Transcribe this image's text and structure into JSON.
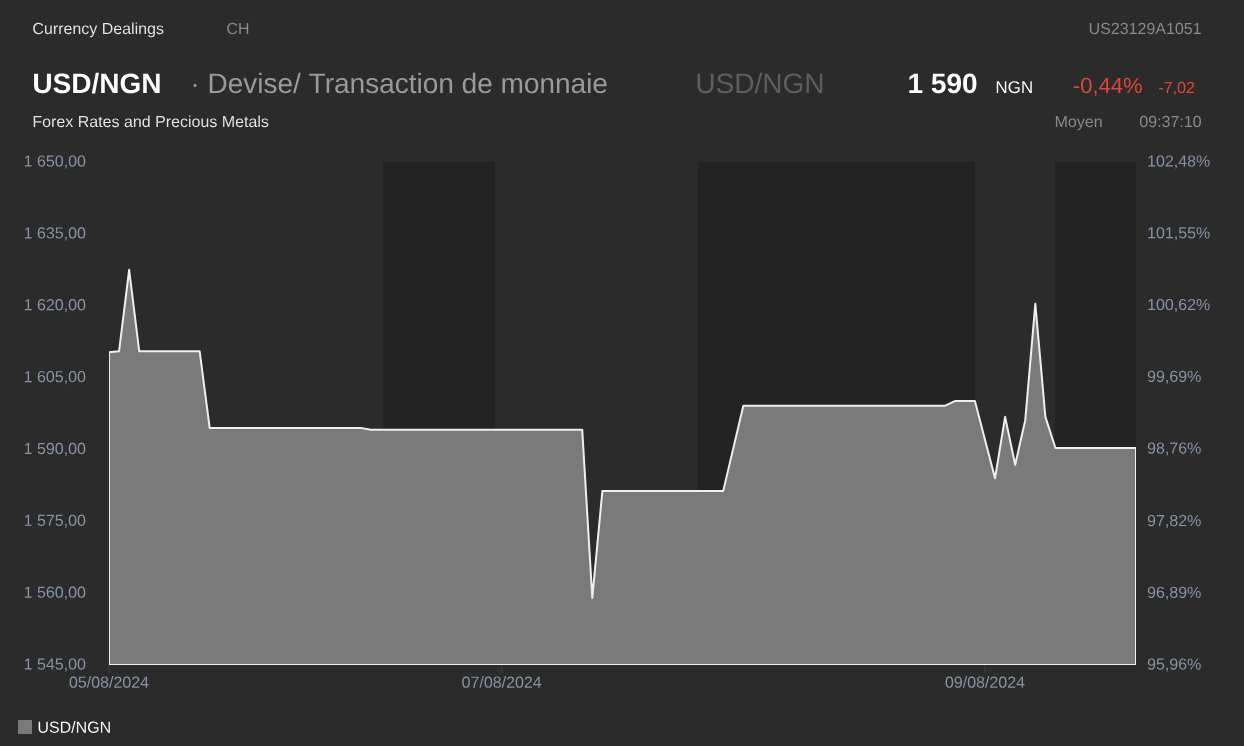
{
  "chart_data": {
    "type": "area",
    "title": "USD/NGN",
    "subtitle": "Forex Rates and Precious Metals",
    "annotations": [
      "Currency Dealings",
      "CH",
      "US23129A1051",
      "· Devise/ Transaction de monnaie",
      "USD/NGN",
      "1 590",
      "NGN",
      "-0,44%",
      "-7,02",
      "Moyen",
      "09:37:10"
    ],
    "categories": [
      "05/08/2024",
      null,
      null,
      null,
      null,
      null,
      null,
      null,
      null,
      null,
      null,
      null,
      null,
      null,
      null,
      null,
      null,
      null,
      null,
      null,
      null,
      null,
      null,
      null,
      null,
      null,
      null,
      null,
      null,
      null,
      null,
      null,
      null,
      null,
      null,
      null,
      null,
      null,
      null,
      "07/08/2024",
      null,
      null,
      null,
      null,
      null,
      null,
      null,
      null,
      null,
      null,
      null,
      null,
      null,
      null,
      null,
      null,
      null,
      null,
      null,
      null,
      null,
      null,
      null,
      null,
      null,
      null,
      null,
      null,
      null,
      null,
      null,
      null,
      null,
      null,
      null,
      null,
      null,
      null,
      null,
      null,
      null,
      null,
      null,
      null,
      null,
      null,
      null,
      "09/08/2024",
      null,
      null,
      null,
      null,
      null,
      null,
      null,
      null,
      null,
      null,
      null,
      null,
      null,
      null,
      null
    ],
    "series": [
      {
        "name": "USD/NGN",
        "color": "#7a7a7a",
        "values": [
          1610.3,
          1610.5,
          1627.5,
          1610.5,
          1610.5,
          1610.5,
          1610.5,
          1610.5,
          1610.5,
          1610.5,
          1594.5,
          1594.5,
          1594.5,
          1594.5,
          1594.5,
          1594.5,
          1594.5,
          1594.5,
          1594.5,
          1594.5,
          1594.5,
          1594.5,
          1594.5,
          1594.5,
          1594.5,
          1594.5,
          1594.1,
          1594.1,
          1594.1,
          1594.1,
          1594.1,
          1594.1,
          1594.1,
          1594.1,
          1594.1,
          1594.1,
          1594.1,
          1594.1,
          1594.1,
          1594.1,
          1594.1,
          1594.1,
          1594.1,
          1594.1,
          1594.1,
          1594.1,
          1594.1,
          1594.1,
          1559,
          1581.3,
          1581.3,
          1581.3,
          1581.3,
          1581.3,
          1581.3,
          1581.3,
          1581.3,
          1581.3,
          1581.3,
          1581.3,
          1581.3,
          1581.3,
          1590.2,
          1599.1,
          1599.1,
          1599.1,
          1599.1,
          1599.1,
          1599.1,
          1599.1,
          1599.1,
          1599.1,
          1599.1,
          1599.1,
          1599.1,
          1599.1,
          1599.1,
          1599.1,
          1599.1,
          1599.1,
          1599.1,
          1599.1,
          1599.1,
          1599.1,
          1600.1,
          1600.1,
          1600.1,
          1592,
          1584,
          1596.8,
          1586.8,
          1596.1,
          1620.4,
          1596.8,
          1590.3,
          1590.3,
          1590.3,
          1590.3,
          1590.3,
          1590.3,
          1590.3,
          1590.3,
          1590.3
        ]
      }
    ],
    "ylim": [
      1545,
      1650
    ],
    "yticks": [
      {
        "value": 1545,
        "label": "1 545,00"
      },
      {
        "value": 1560,
        "label": "1 560,00"
      },
      {
        "value": 1575,
        "label": "1 575,00"
      },
      {
        "value": 1590,
        "label": "1 590,00"
      },
      {
        "value": 1605,
        "label": "1 605,00"
      },
      {
        "value": 1620,
        "label": "1 620,00"
      },
      {
        "value": 1635,
        "label": "1 635,00"
      },
      {
        "value": 1650,
        "label": "1 650,00"
      }
    ],
    "y2lim": [
      95.96,
      102.48
    ],
    "y2ticks": [
      {
        "value": 95.96,
        "label": "95,96%"
      },
      {
        "value": 96.89,
        "label": "96,89%"
      },
      {
        "value": 97.82,
        "label": "97,82%"
      },
      {
        "value": 98.76,
        "label": "98,76%"
      },
      {
        "value": 99.69,
        "label": "99,69%"
      },
      {
        "value": 100.62,
        "label": "100,62%"
      },
      {
        "value": 101.55,
        "label": "101,55%"
      },
      {
        "value": 102.48,
        "label": "102,48%"
      }
    ],
    "legend": "bottom left"
  }
}
